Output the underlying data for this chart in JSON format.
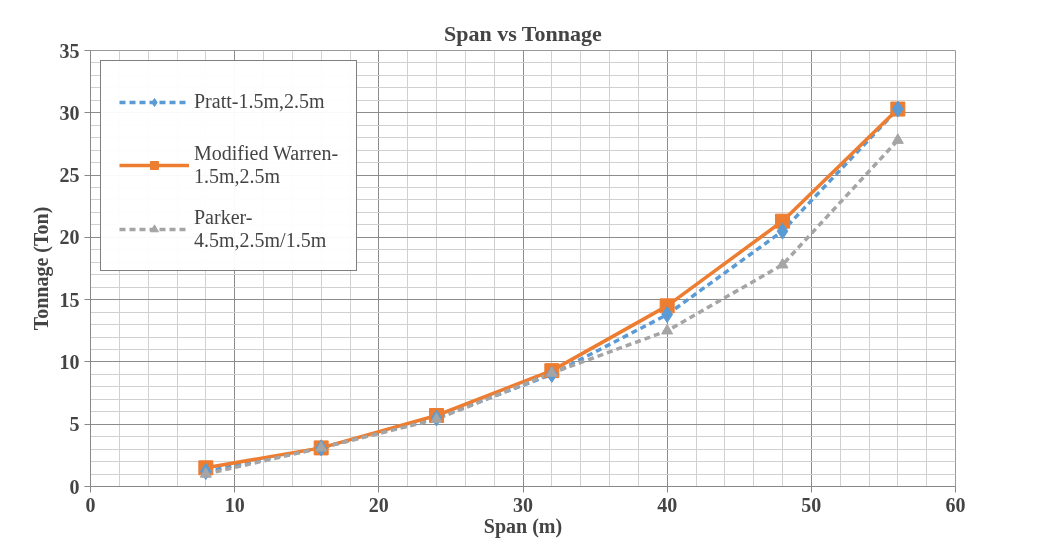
{
  "chart_data": {
    "type": "line",
    "title": "Span vs Tonnage",
    "xlabel": "Span (m)",
    "ylabel": "Tonnage (Ton)",
    "x": [
      8,
      16,
      24,
      32,
      40,
      48,
      56
    ],
    "xlim": [
      0,
      60
    ],
    "xticks": [
      0,
      10,
      20,
      30,
      40,
      50,
      60
    ],
    "ylim": [
      0,
      35
    ],
    "yticks": [
      0,
      5,
      10,
      15,
      20,
      25,
      30,
      35
    ],
    "grid": true,
    "legend": "top left",
    "series": [
      {
        "name": "Pratt-1.5m,2.5m",
        "color": "#5b9bd5",
        "marker": "diamond",
        "line_style": "dashed",
        "values": [
          1.2,
          3.1,
          5.5,
          9.0,
          13.8,
          20.5,
          30.3
        ]
      },
      {
        "name": "Modified Warren-1.5m,2.5m",
        "color": "#ed7d31",
        "marker": "square",
        "line_style": "solid",
        "values": [
          1.5,
          3.1,
          5.7,
          9.3,
          14.5,
          21.3,
          30.3
        ]
      },
      {
        "name": "Parker-4.5m,2.5m/1.5m",
        "color": "#a5a5a5",
        "marker": "triangle",
        "line_style": "dashed",
        "values": [
          1.0,
          3.1,
          5.4,
          9.1,
          12.5,
          17.8,
          27.8
        ]
      }
    ]
  }
}
